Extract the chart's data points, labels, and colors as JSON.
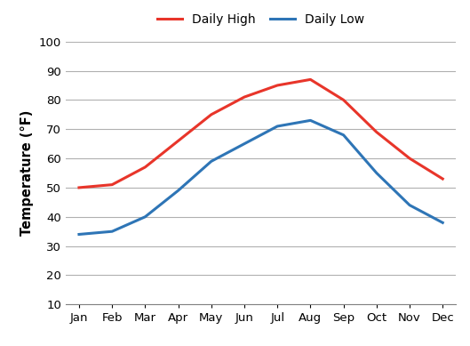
{
  "months": [
    "Jan",
    "Feb",
    "Mar",
    "Apr",
    "May",
    "Jun",
    "Jul",
    "Aug",
    "Sep",
    "Oct",
    "Nov",
    "Dec"
  ],
  "daily_high": [
    50,
    51,
    57,
    66,
    75,
    81,
    85,
    87,
    80,
    69,
    60,
    53
  ],
  "daily_low": [
    34,
    35,
    40,
    49,
    59,
    65,
    71,
    73,
    68,
    55,
    44,
    38
  ],
  "high_color": "#e8352a",
  "low_color": "#2e75b6",
  "ylabel": "Temperature (°F)",
  "legend_high": "Daily High",
  "legend_low": "Daily Low",
  "ylim": [
    10,
    100
  ],
  "yticks": [
    10,
    20,
    30,
    40,
    50,
    60,
    70,
    80,
    90,
    100
  ],
  "line_width": 2.2,
  "background_color": "#ffffff",
  "grid_color": "#b0b0b0"
}
